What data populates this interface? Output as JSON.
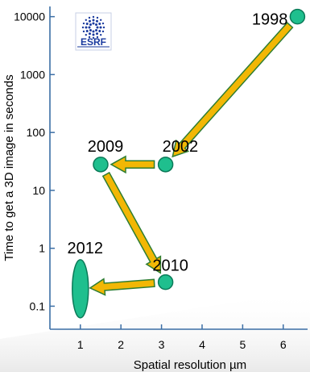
{
  "chart_data": {
    "type": "scatter",
    "xlabel": "Spatial resolution µm",
    "ylabel": "Time to get a 3D image in seconds",
    "x_ticks": [
      1,
      2,
      3,
      4,
      5,
      6
    ],
    "y_ticks": [
      {
        "value": 10000,
        "label": "10000"
      },
      {
        "value": 1000,
        "label": "1000"
      },
      {
        "value": 100,
        "label": "100"
      },
      {
        "value": 10,
        "label": "10"
      },
      {
        "value": 1,
        "label": "1"
      },
      {
        "value": 0.1,
        "label": "0.1"
      }
    ],
    "xlim": [
      0.25,
      6.6
    ],
    "ylim": [
      0.04,
      15000
    ],
    "y_scale": "log",
    "grid": false,
    "points": [
      {
        "label": "1998",
        "x": 6.35,
        "y": 10000
      },
      {
        "label": "2002",
        "x": 3.1,
        "y": 28
      },
      {
        "label": "2009",
        "x": 1.5,
        "y": 28
      },
      {
        "label": "2010",
        "x": 3.1,
        "y": 0.26
      },
      {
        "label": "2012",
        "x": 1.0,
        "y": 0.2
      }
    ],
    "arrows": [
      {
        "from": "1998",
        "to": "2002"
      },
      {
        "from": "2002",
        "to": "2009"
      },
      {
        "from": "2009",
        "to": "2010"
      },
      {
        "from": "2010",
        "to": "2012"
      }
    ],
    "logo": {
      "text": "ESRF",
      "icon": "esrf-logo-icon"
    },
    "colors": {
      "point_fill": "#1fbf8e",
      "point_stroke": "#0b7a58",
      "arrow_fill": "#f2b705",
      "arrow_stroke": "#2e7d32",
      "axis": "#3b6ea5"
    }
  }
}
